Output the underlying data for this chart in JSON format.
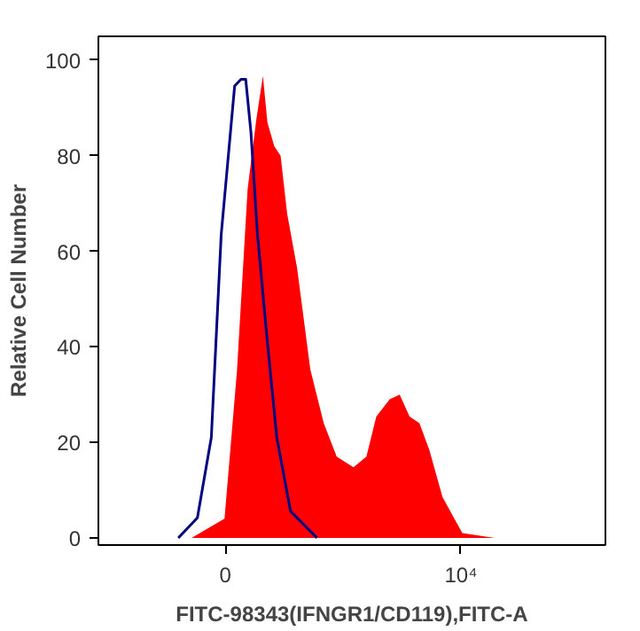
{
  "chart_data": {
    "type": "area",
    "xlabel": "FITC-98343(IFNGR1/CD119),FITC-A",
    "ylabel": "Relative Cell Number",
    "xlim": [
      -5380,
      16130
    ],
    "ylim": [
      -1.5,
      105
    ],
    "xticks": [
      0,
      {
        "value": 10000,
        "label": "10⁴"
      }
    ],
    "yticks": [
      0,
      20,
      40,
      60,
      80,
      100
    ],
    "grid": false,
    "series": [
      {
        "color": "#ff0000",
        "x": [
          -1430,
          -30,
          500,
          950,
          1320,
          1600,
          1790,
          2080,
          2350,
          2630,
          3050,
          3610,
          4180,
          4730,
          5440,
          5990,
          6410,
          6980,
          7400,
          7820,
          8240,
          8660,
          9220,
          10060,
          11430
        ],
        "values": [
          0,
          4,
          35,
          73,
          87.6,
          96.7,
          87,
          82,
          80,
          67.8,
          56.5,
          35.3,
          24,
          17,
          14.8,
          17,
          25.4,
          29,
          30,
          25.4,
          24,
          18.4,
          8.5,
          1,
          0
        ]
      },
      {
        "type": "line",
        "color": "#000080",
        "x": [
          -1990,
          -1180,
          -590,
          -170,
          400,
          670,
          870,
          1090,
          1370,
          1770,
          2190,
          2770,
          3890
        ],
        "values": [
          0,
          4.2,
          21,
          63.5,
          94.6,
          96,
          96,
          85,
          63.5,
          42,
          21,
          5.6,
          0
        ]
      }
    ]
  }
}
